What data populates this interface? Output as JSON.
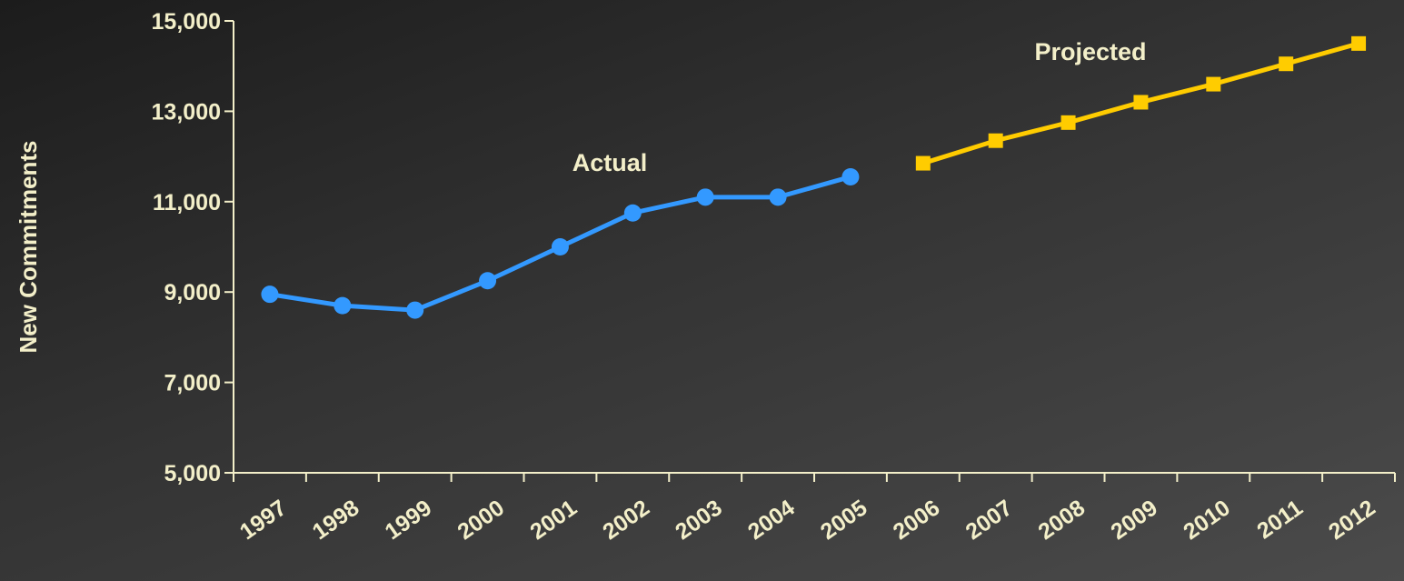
{
  "chart_data": {
    "type": "line",
    "ylabel": "New Commitments",
    "xlabel": "",
    "ylim": [
      5000,
      15000
    ],
    "y_ticks": [
      "5,000",
      "7,000",
      "9,000",
      "11,000",
      "13,000",
      "15,000"
    ],
    "y_tick_values": [
      5000,
      7000,
      9000,
      11000,
      13000,
      15000
    ],
    "categories": [
      "1997",
      "1998",
      "1999",
      "2000",
      "2001",
      "2002",
      "2003",
      "2004",
      "2005",
      "2006",
      "2007",
      "2008",
      "2009",
      "2010",
      "2011",
      "2012"
    ],
    "series": [
      {
        "name": "Actual",
        "color": "#3399ff",
        "marker": "circle",
        "x": [
          "1997",
          "1998",
          "1999",
          "2000",
          "2001",
          "2002",
          "2003",
          "2004",
          "2005"
        ],
        "values": [
          8950,
          8700,
          8600,
          9250,
          10000,
          10750,
          11100,
          11100,
          11550
        ]
      },
      {
        "name": "Projected",
        "color": "#ffcc00",
        "marker": "square",
        "x": [
          "2006",
          "2007",
          "2008",
          "2009",
          "2010",
          "2011",
          "2012"
        ],
        "values": [
          11850,
          12350,
          12750,
          13200,
          13600,
          14050,
          14500
        ]
      }
    ],
    "grid": false,
    "axis_color": "#f3efc9"
  }
}
